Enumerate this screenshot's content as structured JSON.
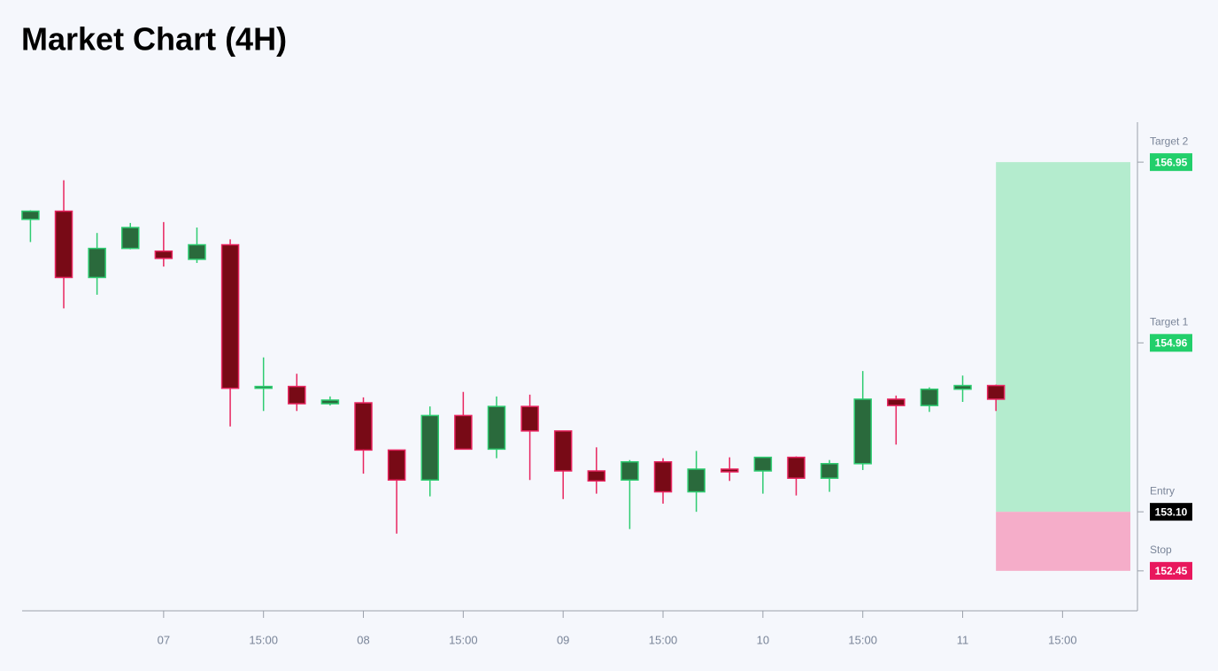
{
  "chart_data": {
    "type": "candlestick",
    "title": "Market Chart (4H)",
    "x": [
      0,
      4,
      8,
      12,
      16,
      20,
      24,
      28,
      32,
      36,
      40,
      44,
      48,
      52,
      56,
      60,
      64,
      68,
      72,
      76,
      80,
      84,
      88,
      92,
      96,
      100,
      104,
      108,
      112,
      116
    ],
    "open": [
      156.32,
      156.41,
      155.68,
      156.0,
      155.97,
      155.88,
      156.04,
      154.46,
      154.48,
      154.29,
      154.3,
      153.78,
      153.45,
      154.16,
      153.79,
      154.26,
      153.99,
      153.55,
      153.45,
      153.65,
      153.32,
      153.57,
      153.55,
      153.7,
      153.47,
      153.63,
      154.34,
      154.27,
      154.45,
      154.49
    ],
    "high": [
      156.42,
      156.75,
      156.17,
      156.28,
      156.29,
      156.23,
      156.1,
      154.8,
      154.62,
      154.37,
      154.36,
      153.78,
      154.26,
      154.42,
      154.37,
      154.39,
      153.99,
      153.81,
      153.67,
      153.69,
      153.77,
      153.7,
      153.7,
      153.71,
      153.67,
      154.65,
      154.38,
      154.47,
      154.6,
      154.5
    ],
    "low": [
      156.07,
      155.34,
      155.49,
      155.99,
      155.8,
      155.84,
      154.04,
      154.21,
      154.21,
      154.27,
      153.52,
      152.86,
      153.27,
      153.79,
      153.69,
      153.45,
      153.24,
      153.3,
      152.91,
      153.19,
      153.1,
      153.44,
      153.3,
      153.28,
      153.32,
      153.56,
      153.84,
      154.2,
      154.31,
      154.21
    ],
    "close": [
      156.41,
      155.68,
      156.0,
      156.23,
      155.89,
      156.04,
      154.46,
      154.48,
      154.29,
      154.33,
      153.78,
      153.45,
      154.16,
      153.79,
      154.26,
      153.99,
      153.55,
      153.44,
      153.65,
      153.32,
      153.57,
      153.54,
      153.7,
      153.47,
      153.63,
      154.34,
      154.27,
      154.45,
      154.49,
      154.34
    ],
    "up_color": "#2a6a3c",
    "up_wick": "#2ecc71",
    "down_color": "#780a16",
    "down_wick": "#e8245f",
    "xlim": [
      -1,
      133
    ],
    "ylim": [
      152.01,
      157.39
    ],
    "xticks": [
      {
        "value": 16,
        "label": "07"
      },
      {
        "value": 28,
        "label": "15:00"
      },
      {
        "value": 40,
        "label": "08"
      },
      {
        "value": 52,
        "label": "15:00"
      },
      {
        "value": 64,
        "label": "09"
      },
      {
        "value": 76,
        "label": "15:00"
      },
      {
        "value": 88,
        "label": "10"
      },
      {
        "value": 100,
        "label": "15:00"
      },
      {
        "value": 112,
        "label": "11"
      },
      {
        "value": 124,
        "label": "15:00"
      }
    ],
    "levels": [
      {
        "name": "Target 2",
        "value": 156.95,
        "label": "156.95",
        "color": "#22cf6b"
      },
      {
        "name": "Target 1",
        "value": 154.96,
        "label": "154.96",
        "color": "#22cf6b"
      },
      {
        "name": "Entry",
        "value": 153.1,
        "label": "153.10",
        "color": "#000000"
      },
      {
        "name": "Stop",
        "value": 152.45,
        "label": "152.45",
        "color": "#e8175d"
      }
    ],
    "profit_color": "#b4ecce",
    "loss_color": "#f5adc9"
  }
}
